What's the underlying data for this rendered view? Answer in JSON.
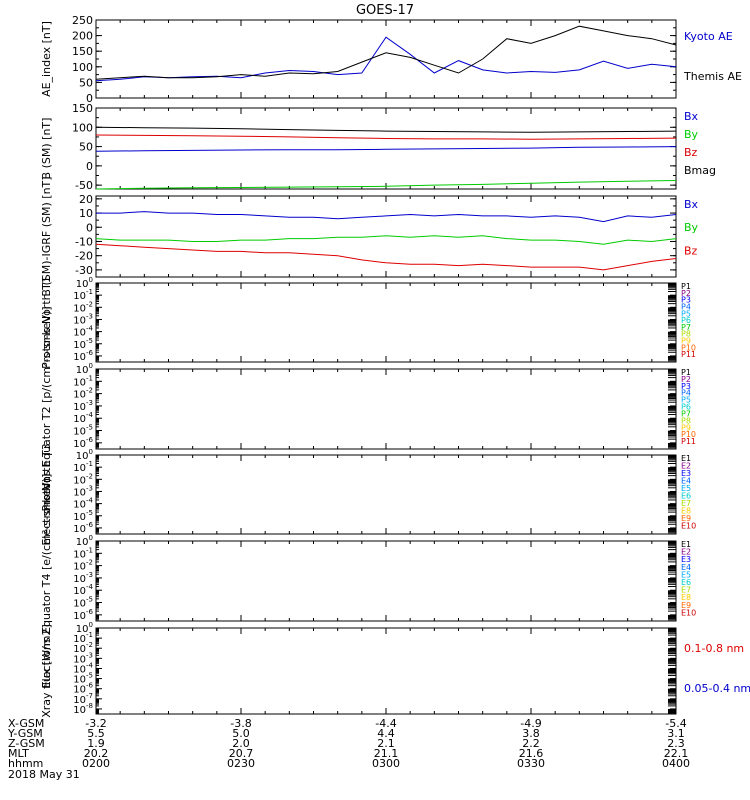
{
  "title": "GOES-17",
  "date_label": "2018 May 31",
  "orbit": {
    "rows": [
      {
        "label": "X-GSM",
        "values": [
          "-3.2",
          "-3.8",
          "-4.4",
          "-4.9",
          "-5.4"
        ]
      },
      {
        "label": "Y-GSM",
        "values": [
          "5.5",
          "5.0",
          "4.4",
          "3.8",
          "3.1"
        ]
      },
      {
        "label": "Z-GSM",
        "values": [
          "1.9",
          "2.0",
          "2.1",
          "2.2",
          "2.3"
        ]
      },
      {
        "label": "MLT",
        "values": [
          "20.2",
          "20.7",
          "21.1",
          "21.6",
          "22.1"
        ]
      },
      {
        "label": "hhmm",
        "values": [
          "0200",
          "0230",
          "0300",
          "0330",
          "0400"
        ]
      }
    ]
  },
  "colors": {
    "black": "#000000",
    "blue": "#0000cc",
    "green": "#00cc00",
    "red": "#dd0000"
  },
  "chart_data": [
    {
      "type": "line",
      "ylabel": "AE_index [nT]",
      "ylim": [
        0,
        250
      ],
      "yticks": [
        "0",
        "50",
        "100",
        "150",
        "200",
        "250"
      ],
      "ytick_values": [
        0,
        50,
        100,
        150,
        200,
        250
      ],
      "minor_step": 25,
      "x": [
        0,
        5,
        10,
        15,
        20,
        25,
        30,
        35,
        40,
        45,
        50,
        55,
        60,
        65,
        70,
        75,
        80,
        85,
        90,
        95,
        100,
        105,
        110,
        115,
        120
      ],
      "series": [
        {
          "name": "Kyoto AE",
          "color": "#0000cc",
          "values": [
            55,
            60,
            68,
            65,
            68,
            70,
            65,
            80,
            88,
            85,
            75,
            80,
            195,
            140,
            80,
            120,
            90,
            80,
            85,
            82,
            90,
            118,
            95,
            108,
            100
          ]
        },
        {
          "name": "Themis AE",
          "color": "#000000",
          "values": [
            60,
            65,
            70,
            65,
            65,
            68,
            75,
            70,
            80,
            78,
            85,
            115,
            145,
            130,
            105,
            80,
            125,
            190,
            175,
            200,
            230,
            215,
            200,
            190,
            170
          ]
        }
      ],
      "legend_colors": [
        "#0000cc",
        "#000000"
      ]
    },
    {
      "type": "line",
      "ylabel": "B (SM) [nT]",
      "ylim": [
        -60,
        150
      ],
      "yticks": [
        "-50",
        "0",
        "50",
        "100",
        "150"
      ],
      "ytick_values": [
        -50,
        0,
        50,
        100,
        150
      ],
      "minor_step": 25,
      "x": [
        0,
        10,
        20,
        30,
        40,
        50,
        60,
        70,
        80,
        90,
        100,
        110,
        120
      ],
      "series": [
        {
          "name": "Bx",
          "color": "#0000cc",
          "values": [
            38,
            39,
            40,
            41,
            42,
            42,
            43,
            44,
            45,
            46,
            48,
            49,
            50
          ]
        },
        {
          "name": "By",
          "color": "#00cc00",
          "values": [
            -60,
            -58,
            -57,
            -56,
            -55,
            -54,
            -53,
            -50,
            -48,
            -45,
            -42,
            -40,
            -38
          ]
        },
        {
          "name": "Bz",
          "color": "#dd0000",
          "values": [
            80,
            79,
            78,
            77,
            75,
            73,
            71,
            70,
            70,
            69,
            70,
            71,
            72
          ]
        },
        {
          "name": "Bmag",
          "color": "#000000",
          "values": [
            100,
            99,
            98,
            96,
            94,
            92,
            90,
            89,
            88,
            87,
            88,
            89,
            90
          ]
        }
      ],
      "legend_colors": [
        "#0000cc",
        "#00cc00",
        "#dd0000",
        "#000000"
      ]
    },
    {
      "type": "line",
      "ylabel": "B (SM)-IGRF (SM) [nT]",
      "ylim": [
        -35,
        22
      ],
      "yticks": [
        "-30",
        "-20",
        "-10",
        "0",
        "10",
        "20"
      ],
      "ytick_values": [
        -30,
        -20,
        -10,
        0,
        10,
        20
      ],
      "minor_step": 5,
      "x": [
        0,
        5,
        10,
        15,
        20,
        25,
        30,
        35,
        40,
        45,
        50,
        55,
        60,
        65,
        70,
        75,
        80,
        85,
        90,
        95,
        100,
        105,
        110,
        115,
        120
      ],
      "series": [
        {
          "name": "Bx",
          "color": "#0000cc",
          "values": [
            10,
            10,
            11,
            10,
            10,
            9,
            9,
            8,
            7,
            7,
            6,
            7,
            8,
            9,
            8,
            9,
            8,
            8,
            7,
            8,
            7,
            4,
            8,
            7,
            9
          ]
        },
        {
          "name": "By",
          "color": "#00cc00",
          "values": [
            -8,
            -9,
            -9,
            -9,
            -10,
            -10,
            -9,
            -9,
            -8,
            -8,
            -7,
            -7,
            -6,
            -7,
            -6,
            -7,
            -6,
            -8,
            -9,
            -9,
            -10,
            -12,
            -9,
            -10,
            -8
          ]
        },
        {
          "name": "Bz",
          "color": "#dd0000",
          "values": [
            -12,
            -13,
            -14,
            -15,
            -16,
            -17,
            -17,
            -18,
            -18,
            -19,
            -20,
            -23,
            -25,
            -26,
            -26,
            -27,
            -26,
            -27,
            -28,
            -28,
            -28,
            -30,
            -27,
            -24,
            -22
          ]
        }
      ],
      "legend_colors": [
        "#0000cc",
        "#00cc00",
        "#dd0000"
      ]
    },
    {
      "type": "line",
      "ylabel": "Protons North T1",
      "log": true,
      "yticks_exp": [
        0,
        -1,
        -2,
        -3,
        -4,
        -5,
        -6
      ],
      "ylim_exp": [
        -6.5,
        0
      ],
      "series": [],
      "legend": [
        "P1",
        "P2",
        "P3",
        "P4",
        "P5",
        "P6",
        "P7",
        "P8",
        "P9",
        "P10",
        "P11"
      ],
      "legend_colors": [
        "#000000",
        "#880088",
        "#0000ff",
        "#0066ff",
        "#00aaff",
        "#00cccc",
        "#00cc00",
        "#aadd00",
        "#ffcc00",
        "#ff6600",
        "#cc0000"
      ]
    },
    {
      "type": "line",
      "ylabel": "Protons Equator T2 [p/(cm²-s-sr-keV)]",
      "log": true,
      "yticks_exp": [
        0,
        -1,
        -2,
        -3,
        -4,
        -5,
        -6
      ],
      "ylim_exp": [
        -6.5,
        0
      ],
      "series": [],
      "legend": [
        "P1",
        "P2",
        "P3",
        "P4",
        "P5",
        "P6",
        "P7",
        "P8",
        "P9",
        "P10",
        "P11"
      ],
      "legend_colors": [
        "#000000",
        "#880088",
        "#0000ff",
        "#0066ff",
        "#00aaff",
        "#00cccc",
        "#00cc00",
        "#aadd00",
        "#ffcc00",
        "#ff6600",
        "#cc0000"
      ]
    },
    {
      "type": "line",
      "ylabel": "Electrons North T3",
      "log": true,
      "yticks_exp": [
        0,
        -1,
        -2,
        -3,
        -4,
        -5,
        -6
      ],
      "ylim_exp": [
        -6.5,
        0
      ],
      "series": [],
      "legend": [
        "E1",
        "E2",
        "E3",
        "E4",
        "E5",
        "E6",
        "E7",
        "E8",
        "E9",
        "E10"
      ],
      "legend_colors": [
        "#000000",
        "#880088",
        "#0000ff",
        "#0066ff",
        "#00aaff",
        "#00cccc",
        "#aadd00",
        "#ffcc00",
        "#ff6600",
        "#cc0000"
      ]
    },
    {
      "type": "line",
      "ylabel": "Electrons Equator T4 [e/(cm²-s-sr-keV)]",
      "log": true,
      "yticks_exp": [
        0,
        -1,
        -2,
        -3,
        -4,
        -5,
        -6
      ],
      "ylim_exp": [
        -6.5,
        0
      ],
      "series": [],
      "legend": [
        "E1",
        "E2",
        "E3",
        "E4",
        "E5",
        "E6",
        "E7",
        "E8",
        "E9",
        "E10"
      ],
      "legend_colors": [
        "#000000",
        "#880088",
        "#0000ff",
        "#0066ff",
        "#00aaff",
        "#00cccc",
        "#aadd00",
        "#ffcc00",
        "#ff6600",
        "#cc0000"
      ]
    },
    {
      "type": "line",
      "ylabel": "Xray flux [W/m2]",
      "log": true,
      "yticks_exp": [
        0,
        -1,
        -2,
        -3,
        -4,
        -5,
        -6,
        -7,
        -8
      ],
      "ylim_exp": [
        -8.5,
        0
      ],
      "series": [],
      "legend": [
        "0.1-0.8 nm",
        "0.05-0.4 nm"
      ],
      "legend_colors": [
        "#dd0000",
        "#0000cc"
      ]
    }
  ]
}
